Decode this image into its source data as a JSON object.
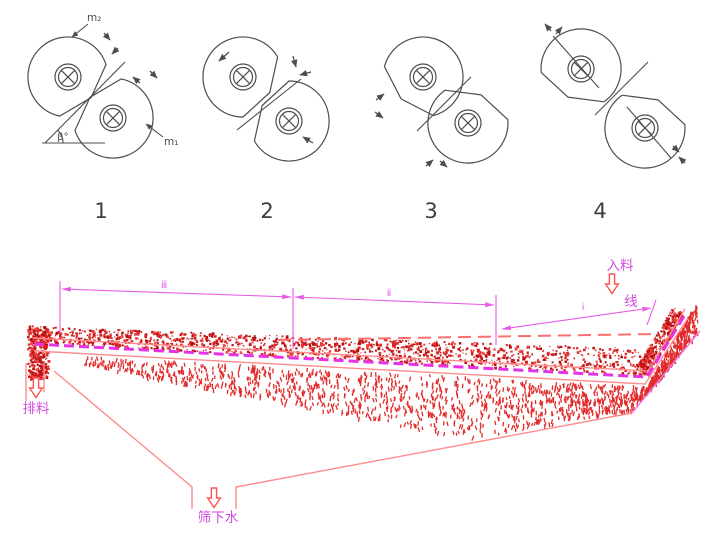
{
  "colors": {
    "figure_line": "#4d4d4d",
    "figure_number": "#3d3d3d",
    "body_pink": "#ff8c8c",
    "deck_magenta": "#e632e6",
    "outer_violet": "#ef7bef",
    "dim_magenta": "#e65ae6",
    "label_magenta": "#d24ae0",
    "water_dash_red": "#ff6e6e",
    "arrow_red": "#ff5252",
    "material_reds": [
      "#c01212",
      "#d81f1f",
      "#e33030",
      "#b20e0e",
      "#ef4040"
    ],
    "droplet_red": "#e22b2b"
  },
  "figures": {
    "items": [
      {
        "num": "1",
        "labels": {
          "m2": "m₂",
          "m1": "m₁",
          "beta": "β°"
        }
      },
      {
        "num": "2"
      },
      {
        "num": "3"
      },
      {
        "num": "4"
      }
    ]
  },
  "screen": {
    "feed_label": "入料",
    "water_line_label": "线",
    "discharge_label": "排料",
    "underflow_label": "筛下水",
    "dim_labels": [
      "ⅲ",
      "ⅱ",
      "ⅰ"
    ]
  }
}
